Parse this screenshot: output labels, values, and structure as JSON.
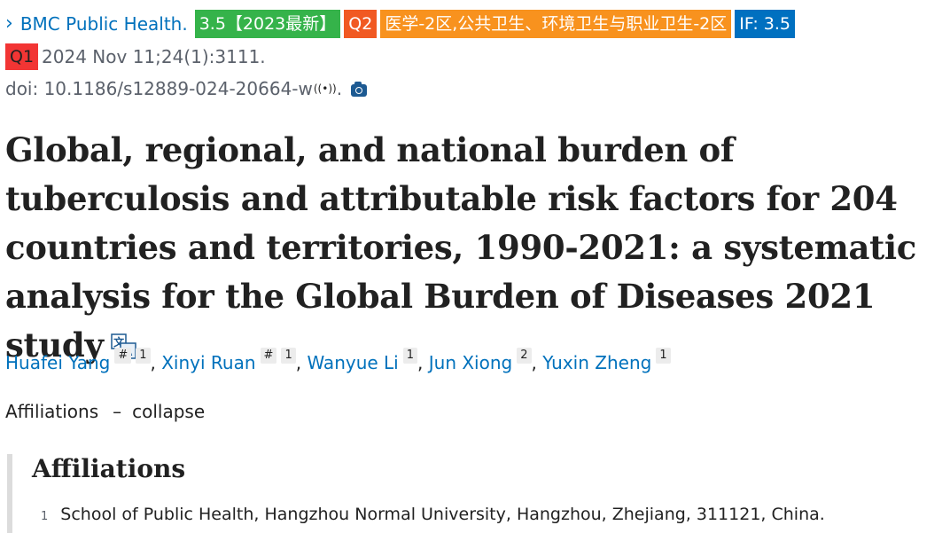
{
  "header": {
    "journal": "BMC Public Health.",
    "badges": {
      "jcr": "3.5【2023最新】",
      "cas_quartile": "Q2",
      "category": "医学-2区,公共卫生、环境卫生与职业卫生-2区",
      "impact_factor": "IF: 3.5",
      "jcr_quartile": "Q1"
    },
    "citation": "2024 Nov 11;24(1):3111.",
    "doi": "doi: 10.1186/s12889-024-20664-w",
    "doi_end": "."
  },
  "article": {
    "title": "Global, regional, and national burden of tuberculosis and attributable risk factors for 204 countries and territories, 1990-2021: a systematic analysis for the Global Burden of Diseases 2021 study"
  },
  "authors": [
    {
      "name": "Huafei Yang",
      "mark": "#",
      "aff": "1"
    },
    {
      "name": "Xinyi Ruan",
      "mark": "#",
      "aff": "1"
    },
    {
      "name": "Wanyue Li",
      "aff": "1"
    },
    {
      "name": "Jun Xiong",
      "aff": "2"
    },
    {
      "name": "Yuxin Zheng",
      "aff": "1"
    }
  ],
  "affiliations": {
    "toggle_label": "Affiliations",
    "toggle_dash": "–",
    "toggle_action": "collapse",
    "heading": "Affiliations",
    "items": [
      {
        "num": "1",
        "text": "School of Public Health, Hangzhou Normal University, Hangzhou, Zhejiang, 311121, China."
      }
    ]
  },
  "icons": [
    "chevron-right-icon",
    "radio-waves-icon",
    "camera-icon",
    "translate-icon"
  ],
  "colors": {
    "link": "#0071bc",
    "green_badge": "#35b34a",
    "q2_badge": "#f15922",
    "category_badge": "#f8921e",
    "if_badge": "#0070c0",
    "q1_badge": "#f23534"
  }
}
